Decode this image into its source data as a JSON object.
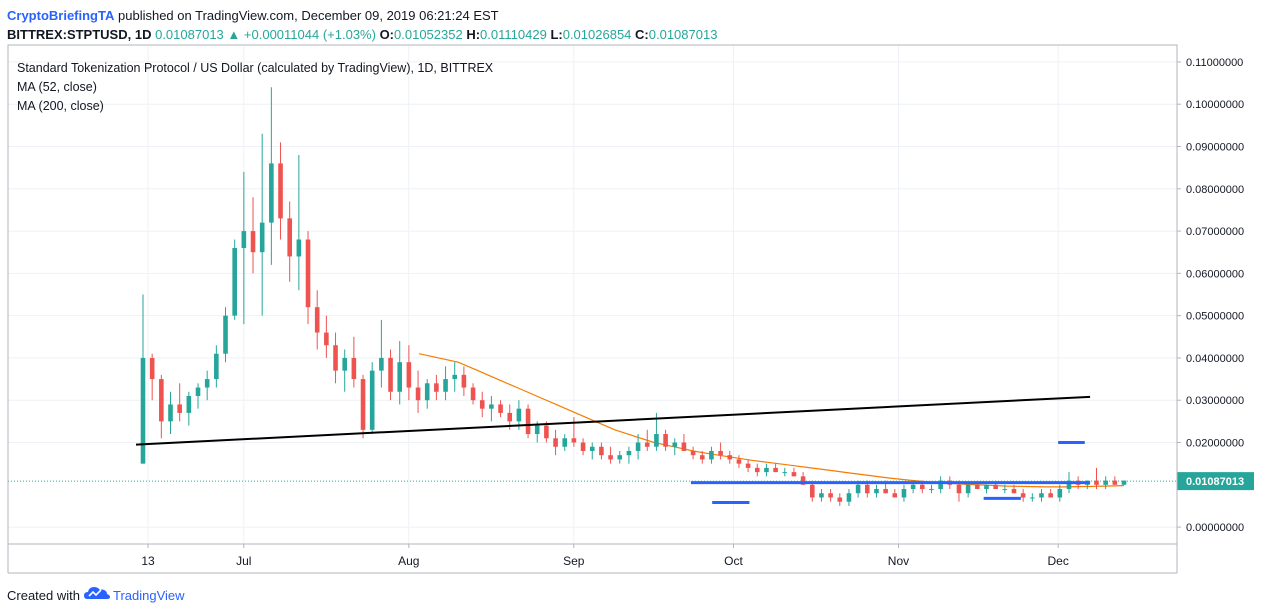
{
  "header": {
    "author": "CryptoBriefingTA",
    "published": "published on TradingView.com, December 09, 2019 06:21:24 EST"
  },
  "ohlc": {
    "symbol": "BITTREX:STPTUSD, 1D",
    "price": "0.01087013",
    "change": "+0.00011044 (+1.03%)",
    "o_label": "O:",
    "o": "0.01052352",
    "h_label": "H:",
    "h": "0.01110429",
    "l_label": "L:",
    "l": "0.01026854",
    "c_label": "C:",
    "c": "0.01087013"
  },
  "legend": {
    "title": "Standard Tokenization Protocol / US Dollar (calculated by TradingView), 1D, BITTREX",
    "ma52": "MA (52, close)",
    "ma200": "MA (200, close)"
  },
  "footer": {
    "created": "Created with",
    "brand": "TradingView"
  },
  "colors": {
    "up": "#26a69a",
    "down": "#ef5350",
    "ma": "#f57c00",
    "trend": "#000000",
    "level": "#2962ff",
    "price_line": "#26a69a",
    "grid": "#eef2f6"
  },
  "chart_data": {
    "type": "candlestick",
    "ylim": [
      -0.004,
      0.114
    ],
    "y_ticks": [
      "0.11000000",
      "0.10000000",
      "0.09000000",
      "0.08000000",
      "0.07000000",
      "0.06000000",
      "0.05000000",
      "0.04000000",
      "0.03000000",
      "0.02000000",
      "0.00000000"
    ],
    "x_ticks": [
      {
        "label": "13",
        "date": "2019-06-13"
      },
      {
        "label": "Jul",
        "date": "2019-07-01"
      },
      {
        "label": "Aug",
        "date": "2019-08-01"
      },
      {
        "label": "Sep",
        "date": "2019-09-01"
      },
      {
        "label": "Oct",
        "date": "2019-10-01"
      },
      {
        "label": "Nov",
        "date": "2019-11-01"
      },
      {
        "label": "Dec",
        "date": "2019-12-01"
      }
    ],
    "current_price": 0.01087013,
    "current_price_label": "0.01087013",
    "candles": [
      [
        0.015,
        0.055,
        0.015,
        0.04
      ],
      [
        0.04,
        0.041,
        0.03,
        0.035
      ],
      [
        0.035,
        0.036,
        0.021,
        0.025
      ],
      [
        0.025,
        0.032,
        0.022,
        0.029
      ],
      [
        0.029,
        0.034,
        0.025,
        0.027
      ],
      [
        0.027,
        0.032,
        0.024,
        0.031
      ],
      [
        0.031,
        0.034,
        0.028,
        0.033
      ],
      [
        0.033,
        0.037,
        0.03,
        0.035
      ],
      [
        0.035,
        0.043,
        0.033,
        0.041
      ],
      [
        0.041,
        0.052,
        0.039,
        0.05
      ],
      [
        0.05,
        0.068,
        0.049,
        0.066
      ],
      [
        0.066,
        0.084,
        0.048,
        0.07
      ],
      [
        0.07,
        0.078,
        0.06,
        0.065
      ],
      [
        0.065,
        0.093,
        0.05,
        0.072
      ],
      [
        0.072,
        0.104,
        0.062,
        0.086
      ],
      [
        0.086,
        0.091,
        0.068,
        0.073
      ],
      [
        0.073,
        0.077,
        0.058,
        0.064
      ],
      [
        0.064,
        0.088,
        0.056,
        0.068
      ],
      [
        0.068,
        0.07,
        0.048,
        0.052
      ],
      [
        0.052,
        0.056,
        0.042,
        0.046
      ],
      [
        0.046,
        0.05,
        0.04,
        0.043
      ],
      [
        0.043,
        0.046,
        0.034,
        0.037
      ],
      [
        0.037,
        0.042,
        0.032,
        0.04
      ],
      [
        0.04,
        0.045,
        0.033,
        0.035
      ],
      [
        0.035,
        0.036,
        0.021,
        0.023
      ],
      [
        0.023,
        0.039,
        0.022,
        0.037
      ],
      [
        0.037,
        0.049,
        0.033,
        0.04
      ],
      [
        0.04,
        0.042,
        0.03,
        0.032
      ],
      [
        0.032,
        0.044,
        0.029,
        0.039
      ],
      [
        0.039,
        0.043,
        0.03,
        0.033
      ],
      [
        0.033,
        0.037,
        0.027,
        0.03
      ],
      [
        0.03,
        0.035,
        0.028,
        0.034
      ],
      [
        0.034,
        0.036,
        0.03,
        0.032
      ],
      [
        0.032,
        0.038,
        0.03,
        0.035
      ],
      [
        0.035,
        0.039,
        0.032,
        0.036
      ],
      [
        0.036,
        0.038,
        0.031,
        0.033
      ],
      [
        0.033,
        0.034,
        0.029,
        0.03
      ],
      [
        0.03,
        0.032,
        0.026,
        0.028
      ],
      [
        0.028,
        0.031,
        0.025,
        0.029
      ],
      [
        0.029,
        0.03,
        0.026,
        0.027
      ],
      [
        0.027,
        0.029,
        0.023,
        0.025
      ],
      [
        0.025,
        0.03,
        0.023,
        0.028
      ],
      [
        0.028,
        0.029,
        0.021,
        0.022
      ],
      [
        0.022,
        0.025,
        0.02,
        0.024
      ],
      [
        0.024,
        0.025,
        0.02,
        0.021
      ],
      [
        0.021,
        0.023,
        0.017,
        0.019
      ],
      [
        0.019,
        0.022,
        0.018,
        0.021
      ],
      [
        0.021,
        0.026,
        0.019,
        0.02
      ],
      [
        0.02,
        0.021,
        0.017,
        0.018
      ],
      [
        0.018,
        0.02,
        0.016,
        0.019
      ],
      [
        0.019,
        0.02,
        0.016,
        0.017
      ],
      [
        0.017,
        0.019,
        0.015,
        0.016
      ],
      [
        0.016,
        0.018,
        0.015,
        0.017
      ],
      [
        0.017,
        0.019,
        0.015,
        0.018
      ],
      [
        0.018,
        0.022,
        0.016,
        0.02
      ],
      [
        0.02,
        0.023,
        0.018,
        0.019
      ],
      [
        0.019,
        0.027,
        0.018,
        0.022
      ],
      [
        0.022,
        0.023,
        0.018,
        0.019
      ],
      [
        0.019,
        0.021,
        0.017,
        0.02
      ],
      [
        0.02,
        0.022,
        0.018,
        0.018
      ],
      [
        0.018,
        0.019,
        0.016,
        0.017
      ],
      [
        0.017,
        0.018,
        0.015,
        0.016
      ],
      [
        0.016,
        0.019,
        0.015,
        0.018
      ],
      [
        0.018,
        0.02,
        0.016,
        0.017
      ],
      [
        0.017,
        0.018,
        0.015,
        0.016
      ],
      [
        0.016,
        0.017,
        0.014,
        0.015
      ],
      [
        0.015,
        0.016,
        0.013,
        0.014
      ],
      [
        0.014,
        0.015,
        0.012,
        0.013
      ],
      [
        0.013,
        0.015,
        0.012,
        0.014
      ],
      [
        0.014,
        0.015,
        0.013,
        0.013
      ],
      [
        0.013,
        0.014,
        0.012,
        0.013
      ],
      [
        0.013,
        0.014,
        0.012,
        0.012
      ],
      [
        0.012,
        0.013,
        0.01,
        0.01
      ],
      [
        0.01,
        0.011,
        0.006,
        0.007
      ],
      [
        0.007,
        0.009,
        0.006,
        0.008
      ],
      [
        0.008,
        0.009,
        0.006,
        0.007
      ],
      [
        0.007,
        0.008,
        0.005,
        0.006
      ],
      [
        0.006,
        0.009,
        0.005,
        0.008
      ],
      [
        0.008,
        0.011,
        0.007,
        0.01
      ],
      [
        0.01,
        0.011,
        0.007,
        0.008
      ],
      [
        0.008,
        0.01,
        0.007,
        0.009
      ],
      [
        0.009,
        0.011,
        0.008,
        0.008
      ],
      [
        0.008,
        0.009,
        0.007,
        0.007
      ],
      [
        0.007,
        0.01,
        0.006,
        0.009
      ],
      [
        0.009,
        0.011,
        0.008,
        0.01
      ],
      [
        0.01,
        0.011,
        0.008,
        0.009
      ],
      [
        0.009,
        0.01,
        0.008,
        0.009
      ],
      [
        0.009,
        0.012,
        0.008,
        0.011
      ],
      [
        0.011,
        0.012,
        0.009,
        0.01
      ],
      [
        0.01,
        0.011,
        0.006,
        0.008
      ],
      [
        0.008,
        0.01,
        0.007,
        0.01
      ],
      [
        0.01,
        0.011,
        0.009,
        0.009
      ],
      [
        0.009,
        0.01,
        0.008,
        0.01
      ],
      [
        0.01,
        0.011,
        0.009,
        0.009
      ],
      [
        0.009,
        0.01,
        0.008,
        0.009
      ],
      [
        0.009,
        0.01,
        0.008,
        0.008
      ],
      [
        0.008,
        0.009,
        0.006,
        0.007
      ],
      [
        0.007,
        0.008,
        0.006,
        0.007
      ],
      [
        0.007,
        0.009,
        0.006,
        0.008
      ],
      [
        0.008,
        0.009,
        0.007,
        0.007
      ],
      [
        0.007,
        0.01,
        0.006,
        0.009
      ],
      [
        0.009,
        0.013,
        0.008,
        0.011
      ],
      [
        0.011,
        0.012,
        0.009,
        0.01
      ],
      [
        0.01,
        0.011,
        0.009,
        0.011
      ],
      [
        0.011,
        0.014,
        0.009,
        0.01
      ],
      [
        0.01,
        0.012,
        0.009,
        0.011
      ],
      [
        0.011,
        0.012,
        0.01,
        0.01
      ],
      [
        0.01,
        0.011,
        0.01,
        0.011
      ]
    ],
    "ma200": [
      0.041,
      0.04,
      0.039,
      0.037,
      0.035,
      0.033,
      0.031,
      0.029,
      0.027,
      0.025,
      0.023,
      0.0215,
      0.02,
      0.019,
      0.018,
      0.0172,
      0.0165,
      0.0158,
      0.0152,
      0.0146,
      0.014,
      0.0134,
      0.0128,
      0.0122,
      0.0116,
      0.0111,
      0.0107,
      0.0104,
      0.0101,
      0.0099,
      0.0097,
      0.0096,
      0.0095,
      0.0095,
      0.0096,
      0.0097,
      0.0098
    ],
    "trend_line": [
      {
        "date": "2019-06-13",
        "value": 0.0195
      },
      {
        "date": "2019-12-07",
        "value": 0.0308
      }
    ],
    "levels": [
      {
        "from": "2019-09-23",
        "to": "2019-12-07",
        "value": 0.0105
      },
      {
        "from": "2019-09-27",
        "to": "2019-10-04",
        "value": 0.0058
      },
      {
        "from": "2019-11-17",
        "to": "2019-11-24",
        "value": 0.0068
      },
      {
        "from": "2019-12-01",
        "to": "2019-12-06",
        "value": 0.02
      }
    ]
  }
}
